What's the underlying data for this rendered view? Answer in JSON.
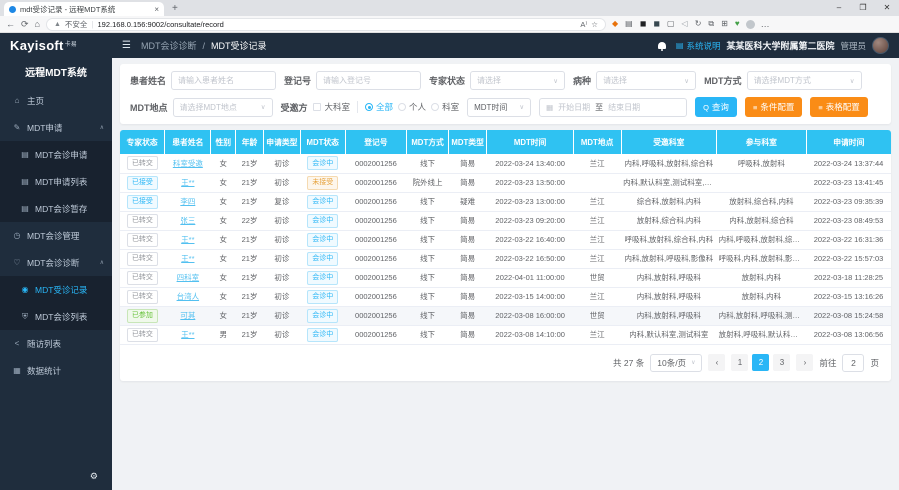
{
  "colors": {
    "accent": "#29b6f6",
    "table_header": "#2fc2f2",
    "orange": "#fa8c16",
    "sidebar_bg": "#1f2d3d",
    "submenu_bg": "#18222f",
    "success": "#67c23a",
    "warning": "#e6a23c",
    "link": "#53c0f0"
  },
  "browser": {
    "tab_title": "mdt受诊记录 - 远程MDT系统",
    "new_tab": "+",
    "security_label": "不安全",
    "url": "192.168.0.156:9002/consultate/record",
    "toolbar_icons": [
      {
        "name": "copilot-icon",
        "glyph": "◆",
        "color": "#e8710a"
      },
      {
        "name": "collections-icon",
        "glyph": "▤",
        "color": "#5f6368"
      },
      {
        "name": "extension-dark-icon",
        "glyph": "◼",
        "color": "#202124"
      },
      {
        "name": "adblock-icon",
        "glyph": "◼",
        "color": "#37474f"
      },
      {
        "name": "screenshot-icon",
        "glyph": "▢",
        "color": "#5f6368"
      },
      {
        "name": "mute-icon",
        "glyph": "◁",
        "color": "#9aa0a6"
      },
      {
        "name": "sync-icon",
        "glyph": "↻",
        "color": "#5f6368"
      },
      {
        "name": "split-screen-icon",
        "glyph": "⧉",
        "color": "#5f6368"
      },
      {
        "name": "extensions-icon",
        "glyph": "⊞",
        "color": "#5f6368"
      },
      {
        "name": "essentials-icon",
        "glyph": "♥",
        "color": "#43a047"
      }
    ],
    "more_glyph": "…",
    "window_controls": {
      "minimize": "–",
      "maximize": "❐",
      "close": "✕"
    }
  },
  "sidebar": {
    "logo": "Kayisoft",
    "logo_suffix": "卡易",
    "subtitle": "远程MDT系统",
    "items": [
      {
        "id": "home",
        "label": "主页",
        "icon": "home-icon",
        "glyph": "⌂"
      },
      {
        "id": "mdt-apply",
        "label": "MDT申请",
        "icon": "edit-icon",
        "glyph": "✎",
        "expanded": true,
        "children": [
          {
            "id": "mdt-consult-apply",
            "label": "MDT会诊申请",
            "icon": "form-icon",
            "glyph": "▤"
          },
          {
            "id": "mdt-apply-list",
            "label": "MDT申请列表",
            "icon": "list-icon",
            "glyph": "▤"
          },
          {
            "id": "mdt-consult-draft",
            "label": "MDT会诊暂存",
            "icon": "draft-icon",
            "glyph": "▤"
          }
        ]
      },
      {
        "id": "mdt-manage",
        "label": "MDT会诊管理",
        "icon": "clock-icon",
        "glyph": "◷"
      },
      {
        "id": "mdt-diagnosis",
        "label": "MDT会诊诊断",
        "icon": "heart-icon",
        "glyph": "♡",
        "expanded": true,
        "children": [
          {
            "id": "mdt-record",
            "label": "MDT受诊记录",
            "icon": "user-icon",
            "glyph": "◉",
            "active": true
          },
          {
            "id": "mdt-consult-list",
            "label": "MDT会诊列表",
            "icon": "shield-icon",
            "glyph": "⛨"
          }
        ]
      },
      {
        "id": "followup-list",
        "label": "随访列表",
        "icon": "share-icon",
        "glyph": "<"
      },
      {
        "id": "data-stats",
        "label": "数据统计",
        "icon": "chart-icon",
        "glyph": "▦"
      }
    ]
  },
  "topbar": {
    "breadcrumb": [
      "MDT会诊诊断",
      "MDT受诊记录"
    ],
    "system_help": "系统说明",
    "hospital": "某某医科大学附属第二医院",
    "role": "管理员"
  },
  "filters": {
    "patient_name_label": "患者姓名",
    "patient_name_placeholder": "请输入患者姓名",
    "reg_label": "登记号",
    "reg_placeholder": "请输入登记号",
    "expert_label": "专家状态",
    "expert_placeholder": "请选择",
    "disease_label": "病种",
    "disease_placeholder": "请选择",
    "mode_label": "MDT方式",
    "mode_placeholder": "请选择MDT方式",
    "place_label": "MDT地点",
    "place_placeholder": "请选择MDT地点",
    "invitee_label": "受邀方",
    "dept_checkbox": "大科室",
    "radio_all": "全部",
    "radio_personal": "个人",
    "radio_dept": "科室",
    "time_select_value": "MDT时间",
    "date_start": "开始日期",
    "date_to": "至",
    "date_end": "结束日期",
    "search_btn": "查询",
    "condition_btn": "条件配置",
    "table_btn": "表格配置"
  },
  "table": {
    "columns": [
      {
        "key": "expert_status",
        "label": "专家状态",
        "type": "badge"
      },
      {
        "key": "name",
        "label": "患者姓名",
        "type": "link"
      },
      {
        "key": "gender",
        "label": "性别",
        "type": "text"
      },
      {
        "key": "age",
        "label": "年龄",
        "type": "text"
      },
      {
        "key": "apply_type",
        "label": "申请类型",
        "type": "text"
      },
      {
        "key": "mdt_status",
        "label": "MDT状态",
        "type": "badge"
      },
      {
        "key": "reg_no",
        "label": "登记号",
        "type": "text"
      },
      {
        "key": "mdt_mode",
        "label": "MDT方式",
        "type": "text"
      },
      {
        "key": "mdt_type",
        "label": "MDT类型",
        "type": "text"
      },
      {
        "key": "mdt_time",
        "label": "MDT时间",
        "type": "text"
      },
      {
        "key": "mdt_place",
        "label": "MDT地点",
        "type": "text"
      },
      {
        "key": "invited_depts",
        "label": "受邀科室",
        "type": "text"
      },
      {
        "key": "joined_depts",
        "label": "参与科室",
        "type": "text"
      },
      {
        "key": "apply_time",
        "label": "申请时间",
        "type": "text"
      }
    ],
    "rows": [
      {
        "expert_status": "已转交",
        "expert_status_variant": "default",
        "name": "科室受邀",
        "gender": "女",
        "age": "21岁",
        "apply_type": "初诊",
        "mdt_status": "会诊中",
        "mdt_status_variant": "primary",
        "reg_no": "0002001256",
        "mdt_mode": "线下",
        "mdt_type": "简易",
        "mdt_time": "2022-03-24 13:40:00",
        "mdt_place": "兰江",
        "invited_depts": "内科,呼吸科,放射科,综合科",
        "joined_depts": "呼吸科,放射科",
        "apply_time": "2022-03-24 13:37:44"
      },
      {
        "expert_status": "已接受",
        "expert_status_variant": "primary",
        "name": "王**",
        "gender": "女",
        "age": "21岁",
        "apply_type": "初诊",
        "mdt_status": "未接受",
        "mdt_status_variant": "warning",
        "reg_no": "0002001256",
        "mdt_mode": "院外线上",
        "mdt_type": "简易",
        "mdt_time": "2022-03-23 13:50:00",
        "mdt_place": "",
        "invited_depts": "内科,默认科室,测试科室,放射科",
        "joined_depts": "",
        "apply_time": "2022-03-23 13:41:45"
      },
      {
        "expert_status": "已接受",
        "expert_status_variant": "primary",
        "name": "李四",
        "gender": "女",
        "age": "21岁",
        "apply_type": "复诊",
        "mdt_status": "会诊中",
        "mdt_status_variant": "primary",
        "reg_no": "0002001256",
        "mdt_mode": "线下",
        "mdt_type": "疑难",
        "mdt_time": "2022-03-23 13:00:00",
        "mdt_place": "兰江",
        "invited_depts": "综合科,放射科,内科",
        "joined_depts": "放射科,综合科,内科",
        "apply_time": "2022-03-23 09:35:39"
      },
      {
        "expert_status": "已转交",
        "expert_status_variant": "default",
        "name": "张三",
        "gender": "女",
        "age": "22岁",
        "apply_type": "初诊",
        "mdt_status": "会诊中",
        "mdt_status_variant": "primary",
        "reg_no": "0002001256",
        "mdt_mode": "线下",
        "mdt_type": "简易",
        "mdt_time": "2022-03-23 09:20:00",
        "mdt_place": "兰江",
        "invited_depts": "放射科,综合科,内科",
        "joined_depts": "内科,放射科,综合科",
        "apply_time": "2022-03-23 08:49:53"
      },
      {
        "expert_status": "已转交",
        "expert_status_variant": "default",
        "name": "王**",
        "gender": "女",
        "age": "21岁",
        "apply_type": "初诊",
        "mdt_status": "会诊中",
        "mdt_status_variant": "primary",
        "reg_no": "0002001256",
        "mdt_mode": "线下",
        "mdt_type": "简易",
        "mdt_time": "2022-03-22 16:40:00",
        "mdt_place": "兰江",
        "invited_depts": "呼吸科,放射科,综合科,内科",
        "joined_depts": "内科,呼吸科,放射科,综合科",
        "apply_time": "2022-03-22 16:31:36"
      },
      {
        "expert_status": "已转交",
        "expert_status_variant": "default",
        "name": "王**",
        "gender": "女",
        "age": "21岁",
        "apply_type": "初诊",
        "mdt_status": "会诊中",
        "mdt_status_variant": "primary",
        "reg_no": "0002001256",
        "mdt_mode": "线下",
        "mdt_type": "简易",
        "mdt_time": "2022-03-22 16:50:00",
        "mdt_place": "兰江",
        "invited_depts": "内科,放射科,呼吸科,影像科",
        "joined_depts": "呼吸科,内科,放射科,影像科",
        "apply_time": "2022-03-22 15:57:03"
      },
      {
        "expert_status": "已转交",
        "expert_status_variant": "default",
        "name": "四科室",
        "gender": "女",
        "age": "21岁",
        "apply_type": "初诊",
        "mdt_status": "会诊中",
        "mdt_status_variant": "primary",
        "reg_no": "0002001256",
        "mdt_mode": "线下",
        "mdt_type": "简易",
        "mdt_time": "2022-04-01 11:00:00",
        "mdt_place": "世贸",
        "invited_depts": "内科,放射科,呼吸科",
        "joined_depts": "放射科,内科",
        "apply_time": "2022-03-18 11:28:25"
      },
      {
        "expert_status": "已转交",
        "expert_status_variant": "default",
        "name": "台湾人",
        "gender": "女",
        "age": "21岁",
        "apply_type": "初诊",
        "mdt_status": "会诊中",
        "mdt_status_variant": "primary",
        "reg_no": "0002001256",
        "mdt_mode": "线下",
        "mdt_type": "简易",
        "mdt_time": "2022-03-15 14:00:00",
        "mdt_place": "兰江",
        "invited_depts": "内科,放射科,呼吸科",
        "joined_depts": "放射科,内科",
        "apply_time": "2022-03-15 13:16:26"
      },
      {
        "expert_status": "已参加",
        "expert_status_variant": "success",
        "name": "可其",
        "gender": "女",
        "age": "21岁",
        "apply_type": "初诊",
        "mdt_status": "会诊中",
        "mdt_status_variant": "primary",
        "reg_no": "0002001256",
        "mdt_mode": "线下",
        "mdt_type": "简易",
        "mdt_time": "2022-03-08 16:00:00",
        "mdt_place": "世贸",
        "invited_depts": "内科,放射科,呼吸科",
        "joined_depts": "内科,放射科,呼吸科,测试科室",
        "apply_time": "2022-03-08 15:24:58",
        "hover": true
      },
      {
        "expert_status": "已转交",
        "expert_status_variant": "default",
        "name": "王**",
        "gender": "男",
        "age": "21岁",
        "apply_type": "初诊",
        "mdt_status": "会诊中",
        "mdt_status_variant": "primary",
        "reg_no": "0002001256",
        "mdt_mode": "线下",
        "mdt_type": "简易",
        "mdt_time": "2022-03-08 14:10:00",
        "mdt_place": "兰江",
        "invited_depts": "内科,默认科室,测试科室",
        "joined_depts": "放射科,呼吸科,默认科室,测...",
        "apply_time": "2022-03-08 13:06:56"
      }
    ]
  },
  "pagination": {
    "total": "共 27 条",
    "page_size": "10条/页",
    "prev": "‹",
    "next": "›",
    "pages": [
      "1",
      "2",
      "3"
    ],
    "active": "2",
    "goto_label": "前往",
    "goto_value": "2",
    "goto_suffix": "页"
  }
}
